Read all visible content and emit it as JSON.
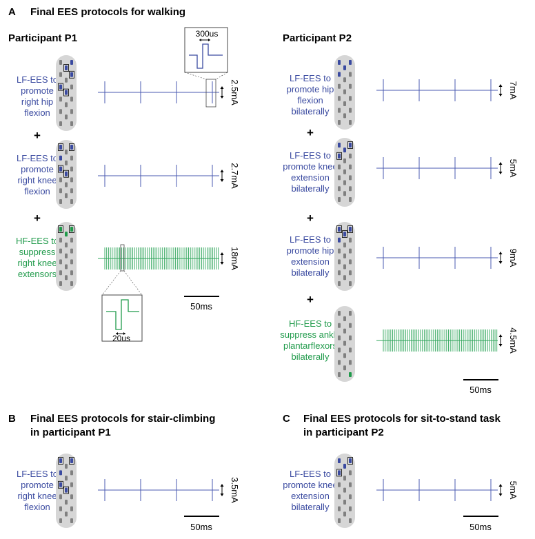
{
  "panel_a": {
    "letter": "A",
    "title": "Final EES protocols for walking",
    "p1": {
      "heading": "Participant P1",
      "rows": [
        {
          "lines": [
            "LF-EES to",
            "promote",
            "right hip",
            "flexion"
          ],
          "type": "LF",
          "amplitude": "2.5mA",
          "pulses": 4
        },
        {
          "lines": [
            "LF-EES to",
            "promote",
            "right knee",
            "flexion"
          ],
          "type": "LF",
          "amplitude": "2.7mA",
          "pulses": 4
        },
        {
          "lines": [
            "HF-EES to",
            "suppress",
            "right knee",
            "extensors"
          ],
          "type": "HF",
          "amplitude": "18mA"
        }
      ],
      "plus": "+",
      "inset_top_label": "300us",
      "inset_bottom_label": "20us",
      "scale_label": "50ms"
    },
    "p2": {
      "heading": "Participant P2",
      "rows": [
        {
          "lines": [
            "LF-EES to",
            "promote hip",
            "flexion",
            "bilaterally"
          ],
          "type": "LF",
          "amplitude": "7mA",
          "pulses": 4
        },
        {
          "lines": [
            "LF-EES to",
            "promote knee",
            "extension",
            "bilaterally"
          ],
          "type": "LF",
          "amplitude": "5mA",
          "pulses": 4
        },
        {
          "lines": [
            "LF-EES to",
            "promote hip",
            "extension",
            "bilaterally"
          ],
          "type": "LF",
          "amplitude": "9mA",
          "pulses": 4
        },
        {
          "lines": [
            "HF-EES to",
            "suppress ankle",
            "plantarflexors",
            "bilaterally"
          ],
          "type": "HF",
          "amplitude": "4.5mA"
        }
      ],
      "plus": "+",
      "scale_label": "50ms"
    }
  },
  "panel_b": {
    "letter": "B",
    "title_lines": [
      "Final EES protocols for stair-climbing",
      "in participant P1"
    ],
    "row": {
      "lines": [
        "LF-EES to",
        "promote",
        "right knee",
        "flexion"
      ],
      "type": "LF",
      "amplitude": "3.5mA",
      "pulses": 4
    },
    "scale_label": "50ms"
  },
  "panel_c": {
    "letter": "C",
    "title_lines": [
      "Final EES protocols for sit-to-stand task",
      "in participant P2"
    ],
    "row": {
      "lines": [
        "LF-EES to",
        "promote knee",
        "extension",
        "bilaterally"
      ],
      "type": "LF",
      "amplitude": "5mA",
      "pulses": 4
    },
    "scale_label": "50ms"
  },
  "colors": {
    "lf": "#3a4aa0",
    "hf": "#1f9a4a",
    "trace_lf": "#4a5ab0",
    "trace_hf": "#2ea55a",
    "paddle": "#d6d6d6",
    "electrode": "#808080"
  }
}
